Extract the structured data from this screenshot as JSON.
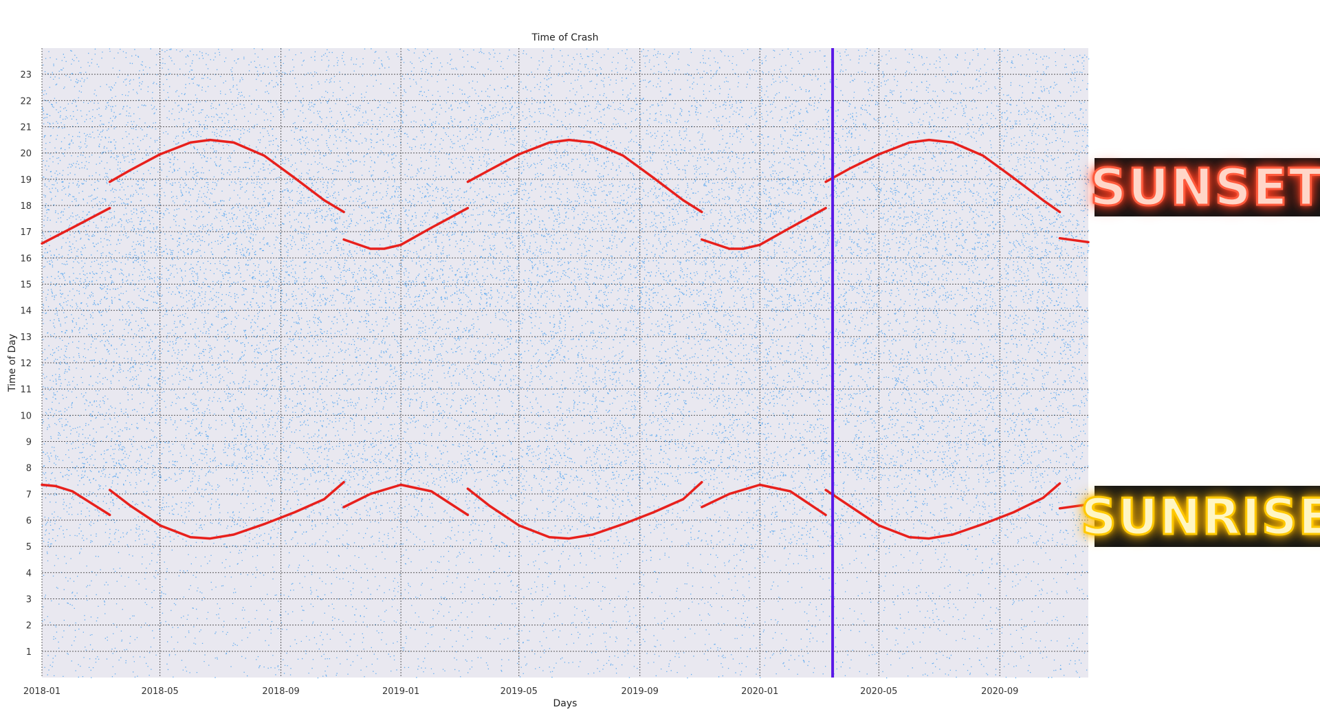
{
  "chart_data": {
    "type": "scatter",
    "title": "Time of Crash",
    "xlabel": "Days",
    "ylabel": "Time of Day",
    "x_range": [
      "2018-01-01",
      "2020-11-30"
    ],
    "ylim": [
      0,
      24
    ],
    "x_ticks": [
      "2018-01",
      "2018-05",
      "2018-09",
      "2019-01",
      "2019-05",
      "2019-09",
      "2020-01",
      "2020-05",
      "2020-09"
    ],
    "y_ticks": [
      1,
      2,
      3,
      4,
      5,
      6,
      7,
      8,
      9,
      10,
      11,
      12,
      13,
      14,
      15,
      16,
      17,
      18,
      19,
      20,
      21,
      22,
      23
    ],
    "grid": true,
    "grid_style": "dotted",
    "background_color": "#e9e8f0",
    "series": [
      {
        "kind": "scatter",
        "color": "#2f95f0",
        "description_density_by_hour": [
          {
            "hours": [
              0,
              5
            ],
            "relative_density": 0.25
          },
          {
            "hours": [
              5,
              7.5
            ],
            "relative_density": 0.55
          },
          {
            "hours": [
              7.5,
              9
            ],
            "relative_density": 0.9
          },
          {
            "hours": [
              9,
              14
            ],
            "relative_density": 0.75
          },
          {
            "hours": [
              14,
              19
            ],
            "relative_density": 1.0
          },
          {
            "hours": [
              19,
              22
            ],
            "relative_density": 0.75
          },
          {
            "hours": [
              22,
              24
            ],
            "relative_density": 0.45
          }
        ]
      },
      {
        "kind": "line",
        "color": "#e8201c",
        "points": [
          [
            "2018-01-01",
            16.55
          ],
          [
            "2018-02-01",
            17.15
          ],
          [
            "2018-03-11",
            17.9
          ],
          [
            "2018-03-11",
            18.9
          ],
          [
            "2018-04-01",
            19.35
          ],
          [
            "2018-05-01",
            19.95
          ],
          [
            "2018-06-01",
            20.4
          ],
          [
            "2018-06-21",
            20.5
          ],
          [
            "2018-07-15",
            20.4
          ],
          [
            "2018-08-15",
            19.9
          ],
          [
            "2018-09-15",
            19.05
          ],
          [
            "2018-10-15",
            18.2
          ],
          [
            "2018-11-04",
            17.75
          ],
          [
            "2018-11-04",
            16.7
          ],
          [
            "2018-12-01",
            16.35
          ],
          [
            "2018-12-15",
            16.35
          ],
          [
            "2019-01-01",
            16.5
          ],
          [
            "2019-02-01",
            17.15
          ],
          [
            "2019-03-10",
            17.9
          ],
          [
            "2019-03-10",
            18.9
          ],
          [
            "2019-04-01",
            19.35
          ],
          [
            "2019-05-01",
            19.95
          ],
          [
            "2019-06-01",
            20.4
          ],
          [
            "2019-06-21",
            20.5
          ],
          [
            "2019-07-15",
            20.4
          ],
          [
            "2019-08-15",
            19.9
          ],
          [
            "2019-09-15",
            19.05
          ],
          [
            "2019-10-15",
            18.2
          ],
          [
            "2019-11-03",
            17.75
          ],
          [
            "2019-11-03",
            16.7
          ],
          [
            "2019-12-01",
            16.35
          ],
          [
            "2019-12-15",
            16.35
          ],
          [
            "2020-01-01",
            16.5
          ],
          [
            "2020-02-01",
            17.15
          ],
          [
            "2020-03-08",
            17.9
          ],
          [
            "2020-03-08",
            18.9
          ],
          [
            "2020-04-01",
            19.4
          ],
          [
            "2020-05-01",
            19.95
          ],
          [
            "2020-06-01",
            20.4
          ],
          [
            "2020-06-21",
            20.5
          ],
          [
            "2020-07-15",
            20.4
          ],
          [
            "2020-08-15",
            19.9
          ],
          [
            "2020-09-15",
            19.05
          ],
          [
            "2020-10-15",
            18.2
          ],
          [
            "2020-11-01",
            17.75
          ],
          [
            "2020-11-01",
            16.75
          ],
          [
            "2020-11-30",
            16.6
          ]
        ]
      },
      {
        "kind": "line",
        "color": "#e8201c",
        "points": [
          [
            "2018-01-01",
            7.35
          ],
          [
            "2018-01-15",
            7.3
          ],
          [
            "2018-02-01",
            7.1
          ],
          [
            "2018-03-11",
            6.2
          ],
          [
            "2018-03-11",
            7.15
          ],
          [
            "2018-04-01",
            6.55
          ],
          [
            "2018-05-01",
            5.8
          ],
          [
            "2018-06-01",
            5.35
          ],
          [
            "2018-06-21",
            5.3
          ],
          [
            "2018-07-15",
            5.45
          ],
          [
            "2018-08-15",
            5.85
          ],
          [
            "2018-09-15",
            6.3
          ],
          [
            "2018-10-15",
            6.8
          ],
          [
            "2018-11-04",
            7.45
          ],
          [
            "2018-11-04",
            6.5
          ],
          [
            "2018-12-01",
            7.0
          ],
          [
            "2019-01-01",
            7.35
          ],
          [
            "2019-02-01",
            7.1
          ],
          [
            "2019-03-10",
            6.2
          ],
          [
            "2019-03-10",
            7.2
          ],
          [
            "2019-04-01",
            6.55
          ],
          [
            "2019-05-01",
            5.8
          ],
          [
            "2019-06-01",
            5.35
          ],
          [
            "2019-06-21",
            5.3
          ],
          [
            "2019-07-15",
            5.45
          ],
          [
            "2019-08-15",
            5.85
          ],
          [
            "2019-09-15",
            6.3
          ],
          [
            "2019-10-15",
            6.8
          ],
          [
            "2019-11-03",
            7.45
          ],
          [
            "2019-11-03",
            6.5
          ],
          [
            "2019-12-01",
            7.0
          ],
          [
            "2020-01-01",
            7.35
          ],
          [
            "2020-02-01",
            7.1
          ],
          [
            "2020-03-08",
            6.2
          ],
          [
            "2020-03-08",
            7.15
          ],
          [
            "2020-04-01",
            6.55
          ],
          [
            "2020-05-01",
            5.8
          ],
          [
            "2020-06-01",
            5.35
          ],
          [
            "2020-06-21",
            5.3
          ],
          [
            "2020-07-15",
            5.45
          ],
          [
            "2020-08-15",
            5.85
          ],
          [
            "2020-09-15",
            6.3
          ],
          [
            "2020-10-15",
            6.85
          ],
          [
            "2020-11-01",
            7.4
          ],
          [
            "2020-11-01",
            6.45
          ],
          [
            "2020-11-30",
            6.6
          ]
        ]
      }
    ],
    "vertical_line": {
      "x": "2020-03-15",
      "color": "#5a18e6"
    }
  },
  "signs": {
    "sunset": {
      "text": "SUNSET",
      "color": "#ff5a3c"
    },
    "sunrise": {
      "text": "SUNRISE",
      "color": "#ffc800"
    }
  }
}
